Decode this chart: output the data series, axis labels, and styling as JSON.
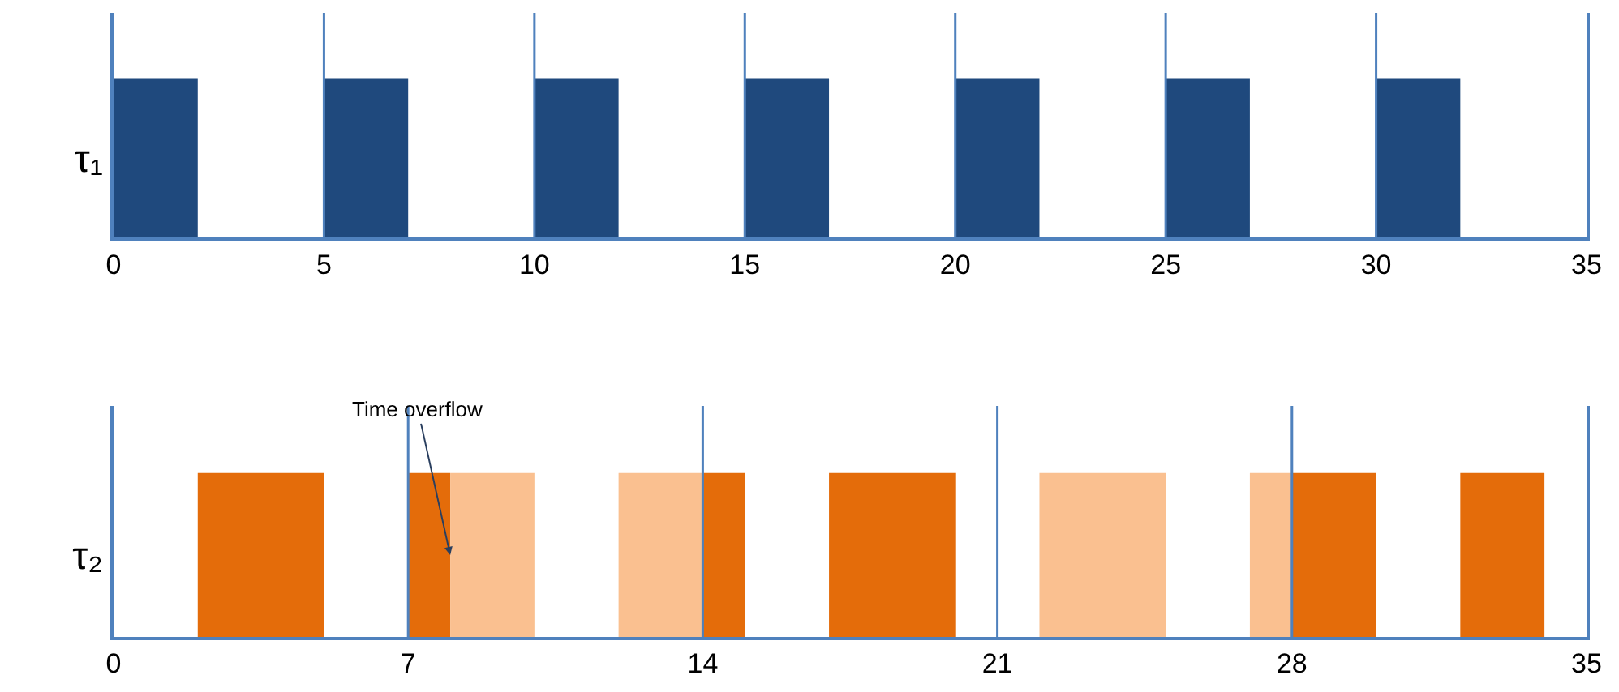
{
  "chart_data": [
    {
      "type": "bar",
      "orientation": "horizontal",
      "categories": [
        "τ₁"
      ],
      "xlim": [
        0,
        35
      ],
      "xticks": [
        0,
        5,
        10,
        15,
        20,
        25,
        30,
        35
      ],
      "series": [
        {
          "color": "#1f497d",
          "base": [
            0
          ],
          "values": [
            2
          ]
        },
        {
          "color": "#1f497d",
          "base": [
            5
          ],
          "values": [
            2
          ]
        },
        {
          "color": "#1f497d",
          "base": [
            10
          ],
          "values": [
            2
          ]
        },
        {
          "color": "#1f497d",
          "base": [
            15
          ],
          "values": [
            2
          ]
        },
        {
          "color": "#1f497d",
          "base": [
            20
          ],
          "values": [
            2
          ]
        },
        {
          "color": "#1f497d",
          "base": [
            25
          ],
          "values": [
            2
          ]
        },
        {
          "color": "#1f497d",
          "base": [
            30
          ],
          "values": [
            2
          ]
        }
      ],
      "ref_lines": [
        {
          "axis": "x",
          "value": 5,
          "color": "#4f81bd"
        },
        {
          "axis": "x",
          "value": 10,
          "color": "#4f81bd"
        },
        {
          "axis": "x",
          "value": 15,
          "color": "#4f81bd"
        },
        {
          "axis": "x",
          "value": 20,
          "color": "#4f81bd"
        },
        {
          "axis": "x",
          "value": 25,
          "color": "#4f81bd"
        },
        {
          "axis": "x",
          "value": 30,
          "color": "#4f81bd"
        }
      ]
    },
    {
      "type": "bar",
      "orientation": "horizontal",
      "categories": [
        "τ₂"
      ],
      "xlim": [
        0,
        35
      ],
      "xticks": [
        0,
        7,
        14,
        21,
        28,
        35
      ],
      "series": [
        {
          "color": "#e46c0a",
          "base": [
            2
          ],
          "values": [
            3
          ]
        },
        {
          "color": "#e46c0a",
          "base": [
            7
          ],
          "values": [
            1
          ]
        },
        {
          "color": "#fac090",
          "base": [
            8
          ],
          "values": [
            2
          ]
        },
        {
          "color": "#fac090",
          "base": [
            12
          ],
          "values": [
            2
          ]
        },
        {
          "color": "#e46c0a",
          "base": [
            14
          ],
          "values": [
            1
          ]
        },
        {
          "color": "#e46c0a",
          "base": [
            17
          ],
          "values": [
            3
          ]
        },
        {
          "color": "#fac090",
          "base": [
            22
          ],
          "values": [
            3
          ]
        },
        {
          "color": "#fac090",
          "base": [
            27
          ],
          "values": [
            1
          ]
        },
        {
          "color": "#e46c0a",
          "base": [
            28
          ],
          "values": [
            2
          ]
        },
        {
          "color": "#e46c0a",
          "base": [
            32
          ],
          "values": [
            2
          ]
        }
      ],
      "ref_lines": [
        {
          "axis": "x",
          "value": 7,
          "color": "#4f81bd"
        },
        {
          "axis": "x",
          "value": 14,
          "color": "#4f81bd"
        },
        {
          "axis": "x",
          "value": 21,
          "color": "#4f81bd"
        },
        {
          "axis": "x",
          "value": 28,
          "color": "#4f81bd"
        }
      ],
      "annotations": [
        {
          "text": "Time overflow",
          "x": 8,
          "y": "τ₂"
        }
      ]
    }
  ]
}
